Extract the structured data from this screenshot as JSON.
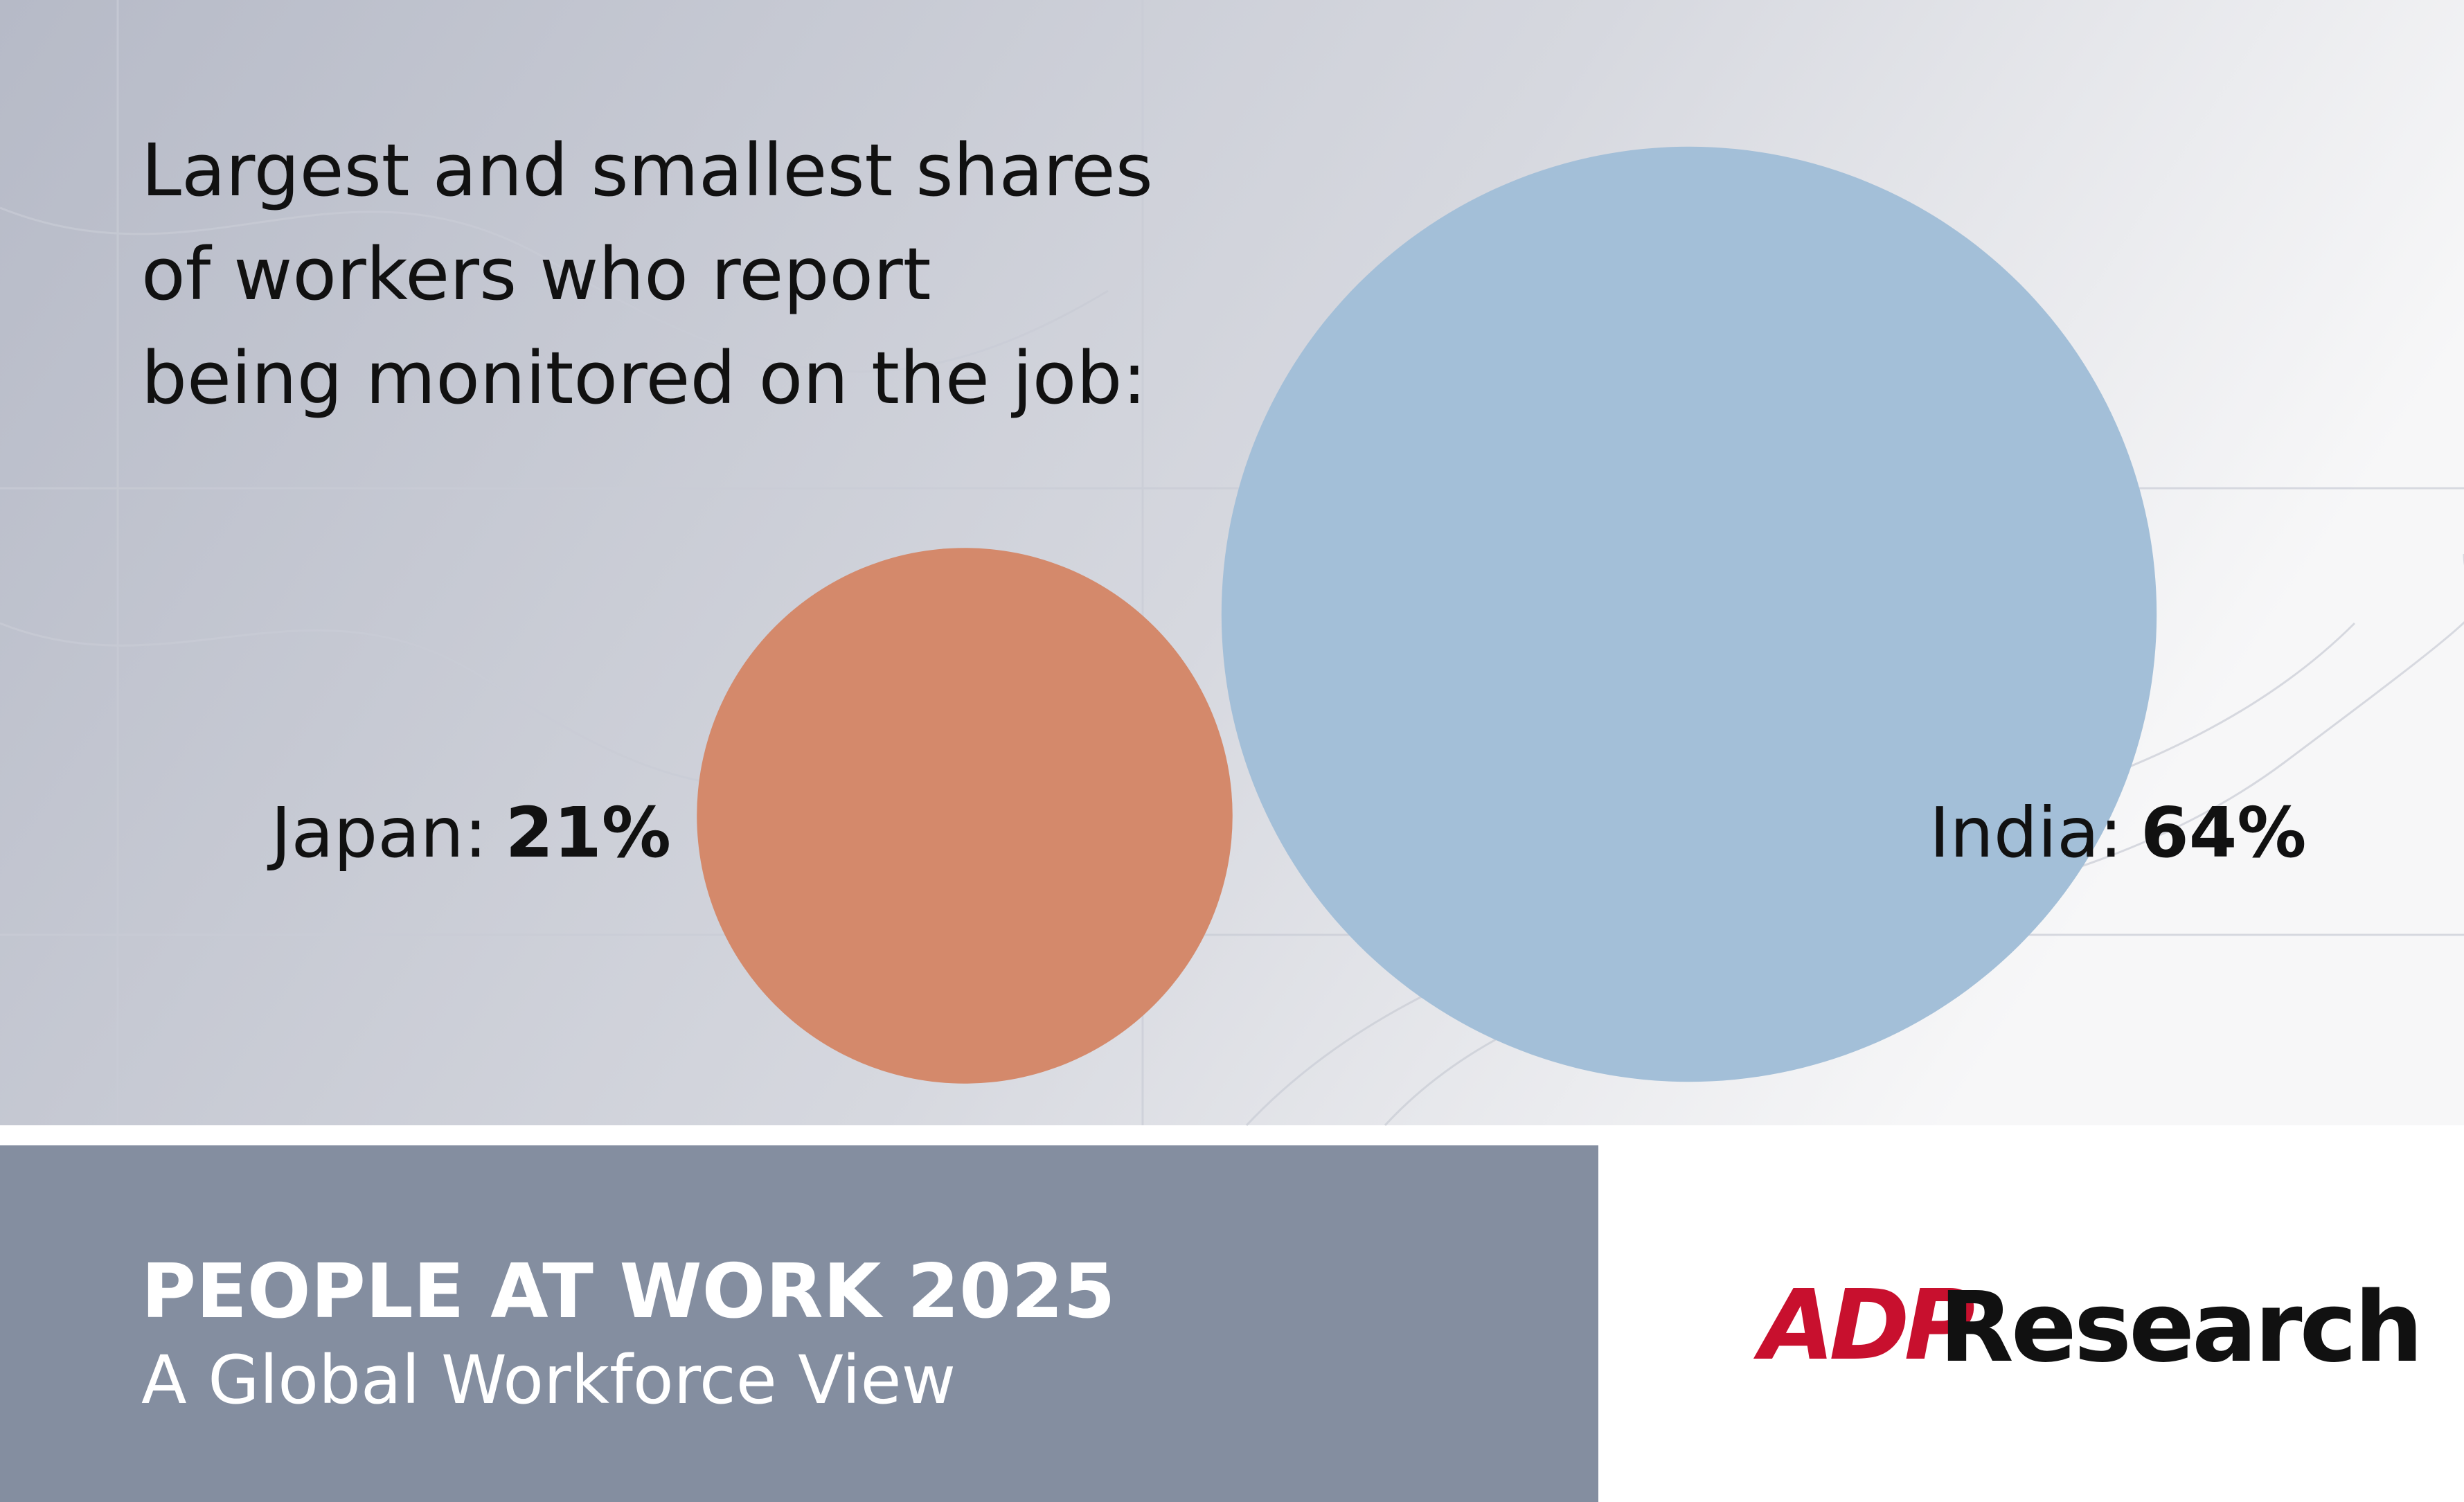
{
  "chart_data": {
    "type": "bubble",
    "title": [
      "Largest and smallest shares",
      "of workers who report",
      "being monitored on the job:"
    ],
    "categories": [
      "Japan:",
      "India:"
    ],
    "values": [
      21,
      64
    ],
    "value_labels": [
      "21%",
      "64%"
    ],
    "colors": [
      "#d4896b",
      "#a3bfd8"
    ]
  },
  "footer": {
    "title": "PEOPLE AT WORK 2025",
    "subtitle": "A Global Workforce View",
    "logo": "ADP",
    "brand": "Research"
  }
}
